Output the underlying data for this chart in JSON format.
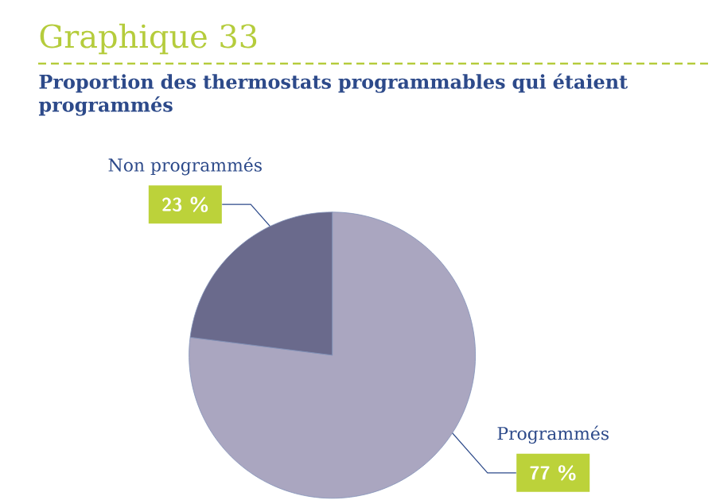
{
  "chart_data": {
    "type": "pie",
    "title": "Graphique 33",
    "subtitle": "Proportion des thermostats programmables qui étaient programmés",
    "categories": [
      "Programmés",
      "Non programmés"
    ],
    "values": [
      77,
      23
    ],
    "colors": [
      "#aaa6c0",
      "#6a6a8c"
    ],
    "value_labels": [
      "77 %",
      "23 %"
    ]
  }
}
